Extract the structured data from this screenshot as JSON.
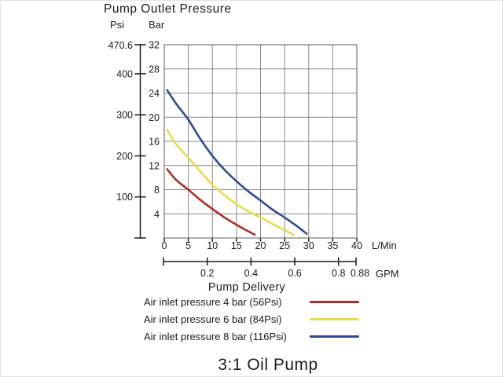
{
  "header": {
    "title": "Pump Outlet Pressure",
    "unit_psi": "Psi",
    "unit_bar": "Bar"
  },
  "footer": {
    "title": "3:1 Oil Pump"
  },
  "chart_data": {
    "type": "line",
    "title": "Pump Outlet Pressure",
    "xlabel": "Pump Delivery",
    "grid": true,
    "legend_position": "bottom",
    "x_axis_lmin": {
      "unit": "L/Min",
      "range": [
        0,
        40
      ],
      "ticks": [
        0,
        5,
        10,
        15,
        20,
        25,
        30,
        35,
        40
      ]
    },
    "x_axis_gpm": {
      "unit": "GPM",
      "label": "Pump Delivery",
      "range": [
        0,
        0.88
      ],
      "ticks": [
        "0.2",
        "0.4",
        "0.6",
        "0.8",
        "0.88"
      ],
      "values": [
        0.2,
        0.4,
        0.6,
        0.8,
        0.88
      ]
    },
    "y_axis_bar": {
      "unit": "Bar",
      "range": [
        0,
        32
      ],
      "ticks": [
        4,
        8,
        12,
        16,
        20,
        24,
        28,
        32
      ]
    },
    "y_axis_psi": {
      "unit": "Psi",
      "max": 470.6,
      "max_label": "470.6",
      "ticks": [
        100,
        200,
        300,
        400
      ]
    },
    "series": [
      {
        "name": "Air inlet pressure 4 bar (56Psi)",
        "color": "#b02c2c",
        "points_lmin_bar": [
          [
            0.6,
            11.4
          ],
          [
            2.5,
            9.6
          ],
          [
            5,
            8.0
          ],
          [
            7.5,
            6.3
          ],
          [
            10,
            4.8
          ],
          [
            12.5,
            3.4
          ],
          [
            15,
            2.2
          ],
          [
            17,
            1.3
          ],
          [
            18.8,
            0.55
          ]
        ]
      },
      {
        "name": "Air inlet pressure 6 bar (84Psi)",
        "color": "#e8dd49",
        "points_lmin_bar": [
          [
            0.6,
            17.9
          ],
          [
            2.5,
            15.5
          ],
          [
            5,
            13.3
          ],
          [
            7.5,
            11.0
          ],
          [
            10,
            8.8
          ],
          [
            12.5,
            7.1
          ],
          [
            15,
            5.6
          ],
          [
            17.5,
            4.4
          ],
          [
            20,
            3.4
          ],
          [
            22.5,
            2.3
          ],
          [
            25,
            1.3
          ],
          [
            26.9,
            0.5
          ]
        ]
      },
      {
        "name": "Air inlet pressure 8 bar (116Psi)",
        "color": "#2e4b9a",
        "points_lmin_bar": [
          [
            0.6,
            24.5
          ],
          [
            2.5,
            22.2
          ],
          [
            5,
            19.6
          ],
          [
            7.5,
            16.4
          ],
          [
            10,
            13.6
          ],
          [
            12.5,
            11.3
          ],
          [
            15,
            9.4
          ],
          [
            17.5,
            7.7
          ],
          [
            20,
            6.2
          ],
          [
            22.5,
            4.7
          ],
          [
            25,
            3.4
          ],
          [
            27.5,
            2.0
          ],
          [
            29.6,
            0.7
          ]
        ]
      }
    ]
  }
}
